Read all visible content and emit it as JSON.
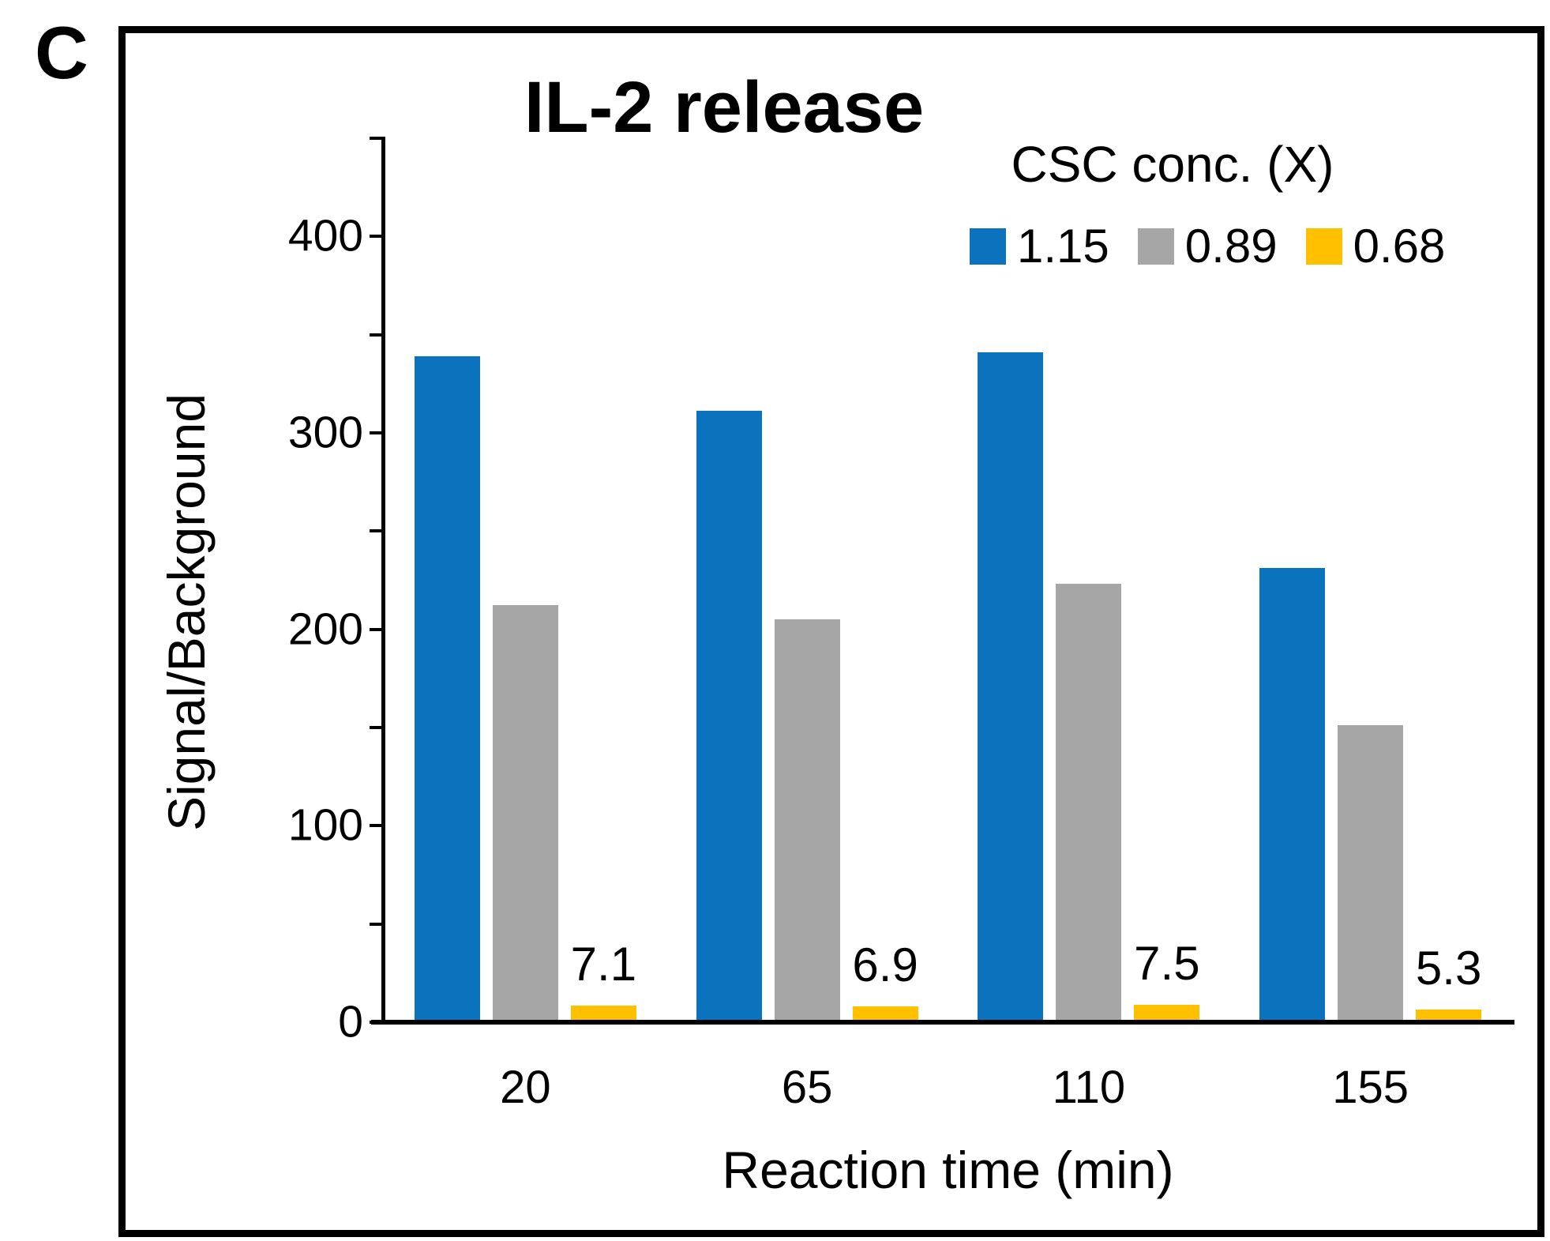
{
  "panel_label": "C",
  "chart": {
    "title": "IL-2 release",
    "y_axis": {
      "title": "Signal/Background",
      "tick_label_values": [
        0,
        100,
        200,
        300,
        400
      ],
      "minor_tick_step": 50,
      "range": [
        0,
        450
      ]
    },
    "x_axis": {
      "title": "Reaction time (min)",
      "categories": [
        "20",
        "65",
        "110",
        "155"
      ]
    },
    "legend": {
      "title": "CSC conc. (X)",
      "items": [
        {
          "label": "1.15",
          "color": "#0B72BE"
        },
        {
          "label": "0.89",
          "color": "#A6A6A6"
        },
        {
          "label": "0.68",
          "color": "#FFC000"
        }
      ]
    }
  },
  "chart_data": {
    "type": "bar",
    "title": "IL-2 release",
    "categories": [
      "20",
      "65",
      "110",
      "155"
    ],
    "series": [
      {
        "name": "1.15",
        "color": "#0B72BE",
        "values": [
          338,
          310,
          340,
          230
        ],
        "data_labels": null
      },
      {
        "name": "0.89",
        "color": "#A6A6A6",
        "values": [
          211,
          204,
          222,
          150
        ],
        "data_labels": null
      },
      {
        "name": "0.68",
        "color": "#FFC000",
        "values": [
          7.1,
          6.9,
          7.5,
          5.3
        ],
        "data_labels": [
          "7.1",
          "6.9",
          "7.5",
          "5.3"
        ]
      }
    ],
    "xlabel": "Reaction time (min)",
    "ylabel": "Signal/Background",
    "ylim": [
      0,
      450
    ],
    "legend_title": "CSC conc. (X)",
    "legend_position": "top-right-inside",
    "grid": false
  }
}
